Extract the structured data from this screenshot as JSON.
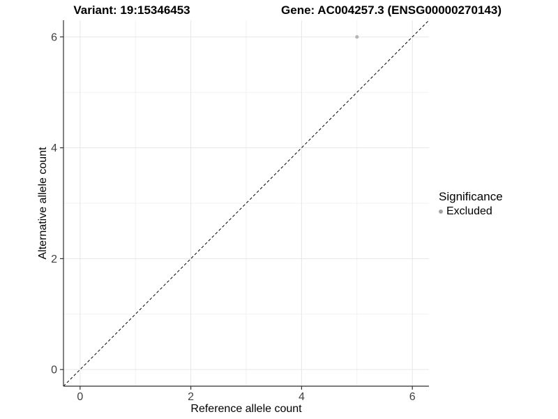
{
  "header": {
    "variant_title": "Variant: 19:15346453",
    "gene_title": "Gene: AC004257.3 (ENSG00000270143)"
  },
  "chart_data": {
    "type": "scatter",
    "title_left": "Variant: 19:15346453",
    "title_right": "Gene: AC004257.3 (ENSG00000270143)",
    "xlabel": "Reference allele count",
    "ylabel": "Alternative allele count",
    "xlim": [
      -0.3,
      6.3
    ],
    "ylim": [
      -0.3,
      6.3
    ],
    "xticks": [
      0,
      2,
      4,
      6
    ],
    "yticks": [
      0,
      2,
      4,
      6
    ],
    "minor_xticks": [
      1,
      3,
      5
    ],
    "minor_yticks": [
      1,
      3,
      5
    ],
    "grid": "major+minor",
    "identity_line": {
      "style": "dashed",
      "slope": 1,
      "intercept": 0
    },
    "series": [
      {
        "name": "Excluded",
        "color": "#b6b6b6",
        "points": [
          {
            "x": 5,
            "y": 6
          }
        ]
      }
    ],
    "legend": {
      "title": "Significance",
      "position": "right",
      "items": [
        {
          "label": "Excluded",
          "color": "#a3a3a3"
        }
      ]
    }
  },
  "colors": {
    "background": "#ffffff",
    "grid_major": "#e6e6e6",
    "grid_minor": "#f2f2f2",
    "axis_line": "#2f2f2f",
    "tick_mark": "#333333",
    "tick_label": "#404040",
    "dashed_line": "#000000",
    "point": "#b6b6b6",
    "legend_key": "#a3a3a3"
  }
}
